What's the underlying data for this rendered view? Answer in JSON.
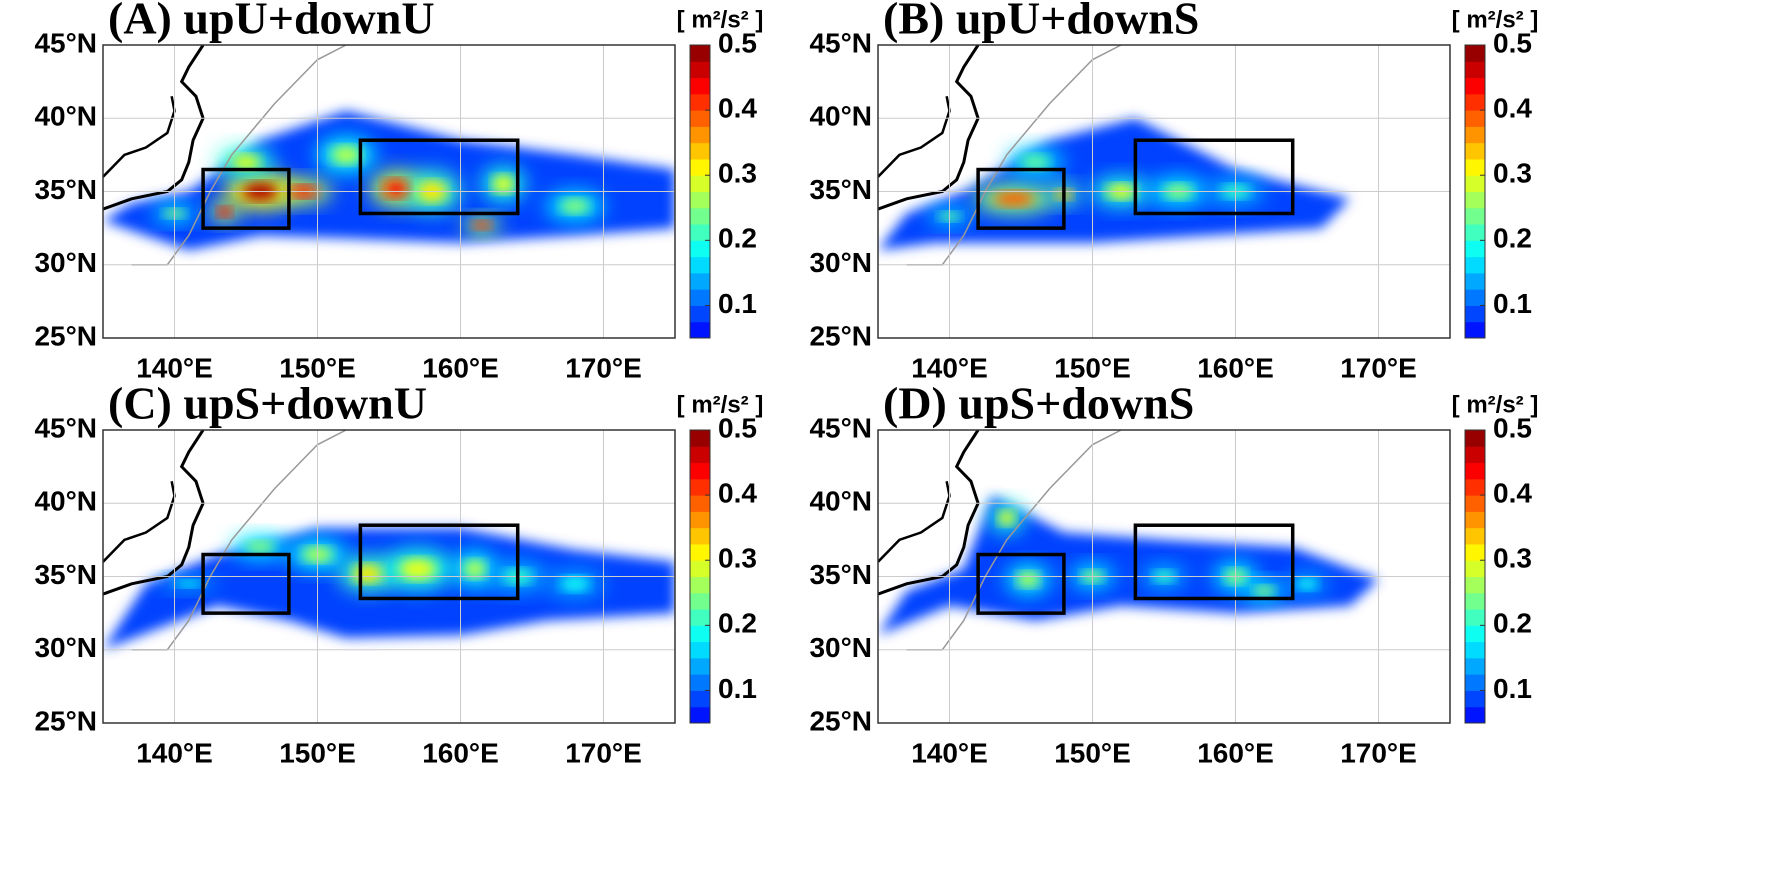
{
  "chart_data": {
    "type": "map",
    "panels": [
      {
        "title": "(A) upU+downU"
      },
      {
        "title": "(B) upU+downS"
      },
      {
        "title": "(C) upS+downU"
      },
      {
        "title": "(D) upS+downS"
      }
    ],
    "xlim": [
      135,
      175
    ],
    "ylim": [
      25,
      45
    ],
    "xticks": [
      {
        "value": 140,
        "label": "140°E"
      },
      {
        "value": 150,
        "label": "150°E"
      },
      {
        "value": 160,
        "label": "160°E"
      },
      {
        "value": 170,
        "label": "170°E"
      }
    ],
    "yticks": [
      {
        "value": 25,
        "label": "25°N"
      },
      {
        "value": 30,
        "label": "30°N"
      },
      {
        "value": 35,
        "label": "35°N"
      },
      {
        "value": 40,
        "label": "40°N"
      },
      {
        "value": 45,
        "label": "45°N"
      }
    ],
    "colorbar": {
      "label": "[ m²/s² ]",
      "lim": [
        0.05,
        0.5
      ],
      "ticks": [
        0.1,
        0.2,
        0.3,
        0.4,
        0.5
      ],
      "colormap": "jet"
    },
    "boxes": [
      [
        142,
        148,
        32.5,
        36.5
      ],
      [
        153,
        164,
        33.5,
        38.5
      ]
    ],
    "grid": true
  }
}
